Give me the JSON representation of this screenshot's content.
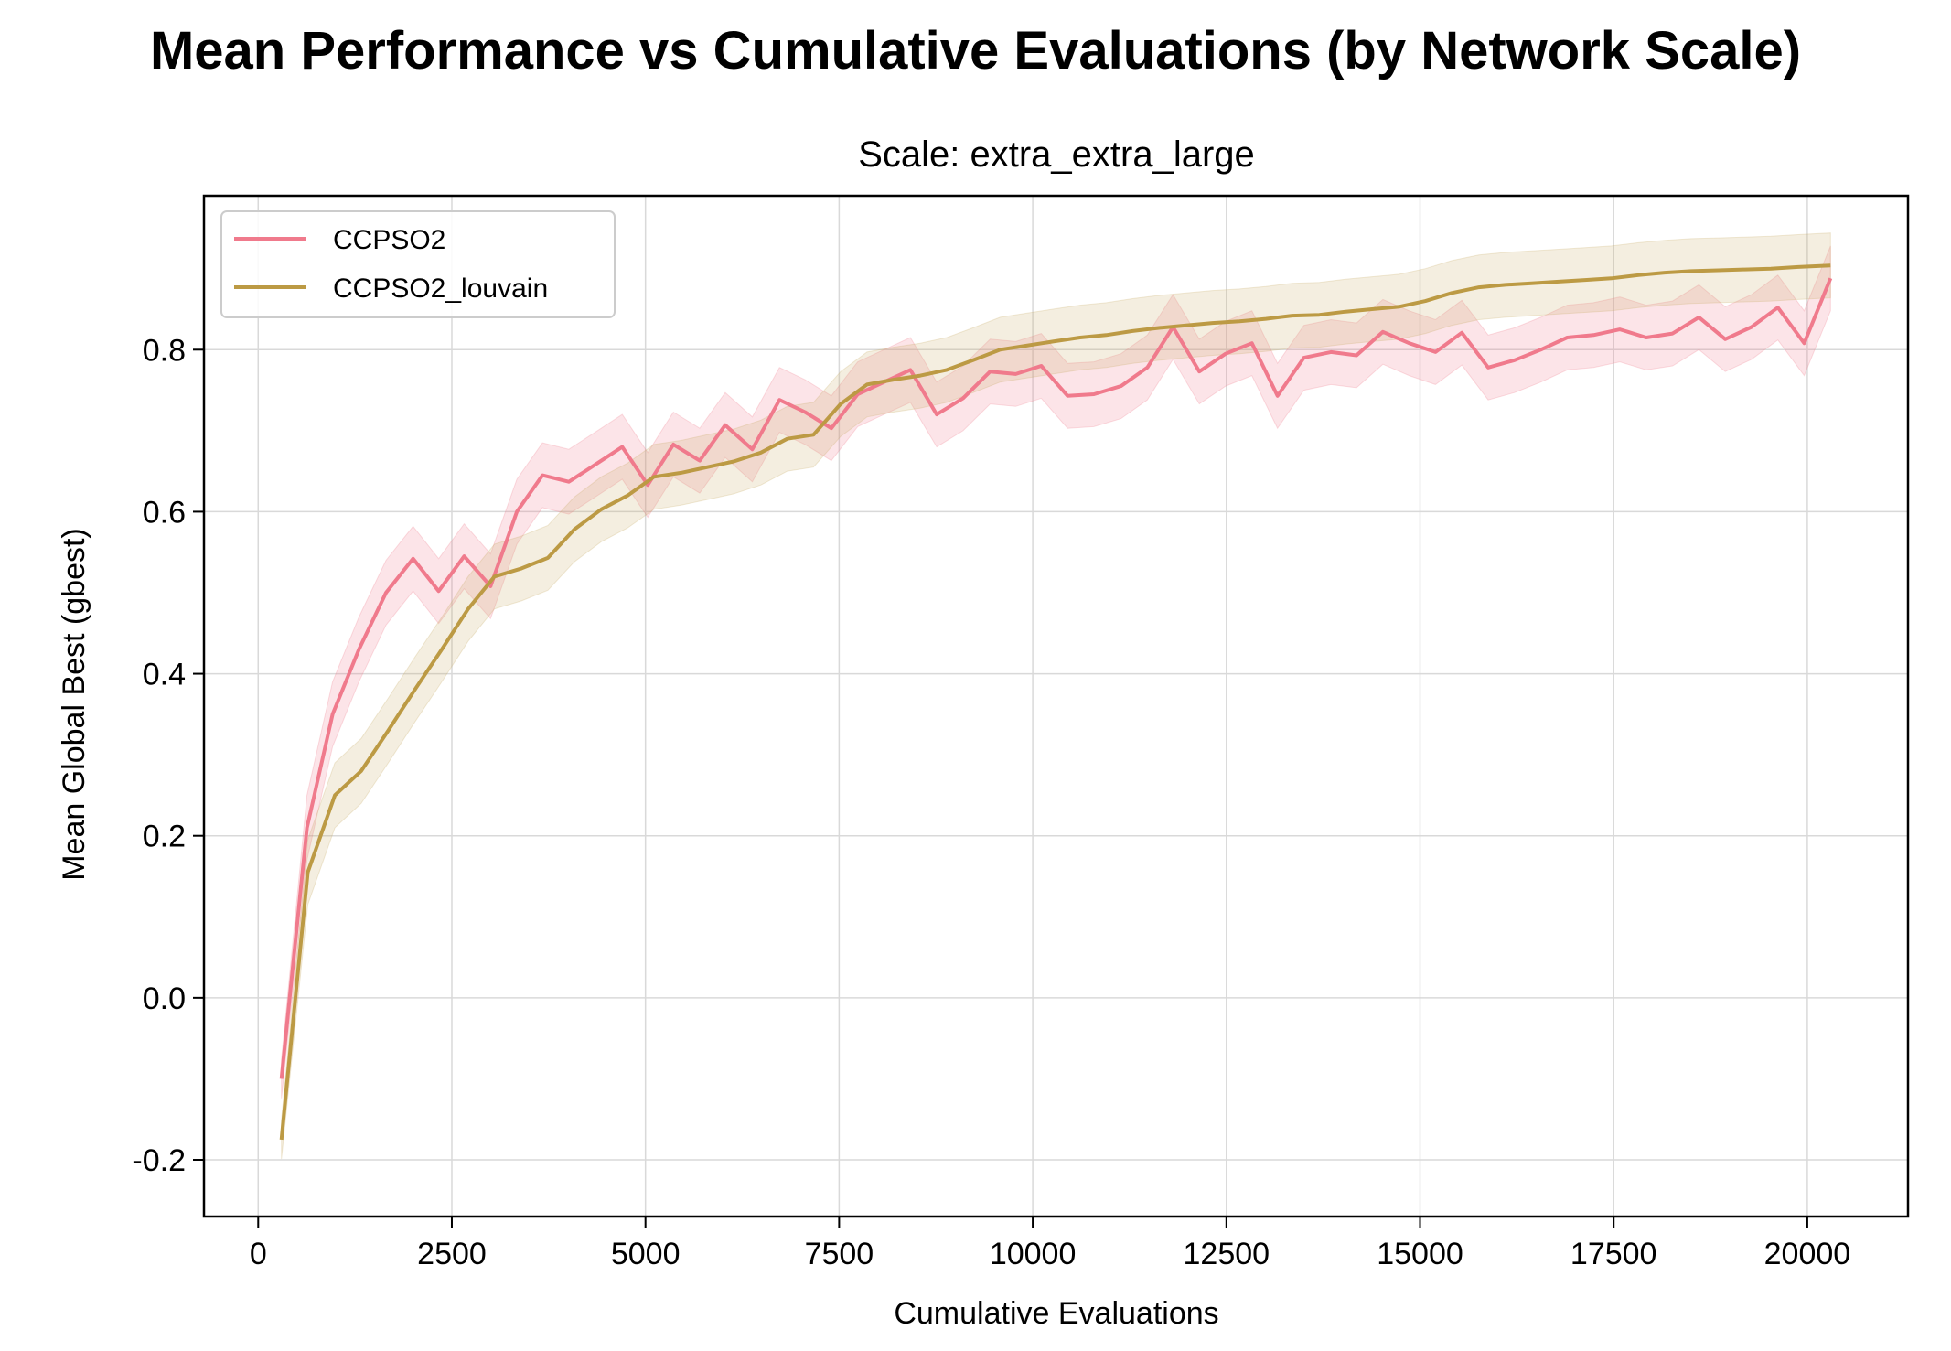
{
  "figure": {
    "suptitle": "Mean Performance vs Cumulative Evaluations (by Network Scale)"
  },
  "chart_data": {
    "type": "line",
    "title": "Scale: extra_extra_large",
    "xlabel": "Cumulative Evaluations",
    "ylabel": "Mean Global Best (gbest)",
    "xlim": [
      -700,
      21300
    ],
    "ylim": [
      -0.27,
      0.99
    ],
    "xticks": [
      0,
      2500,
      5000,
      7500,
      10000,
      12500,
      15000,
      17500,
      20000
    ],
    "xtick_labels": [
      "0",
      "2500",
      "5000",
      "7500",
      "10000",
      "12500",
      "15000",
      "17500",
      "20000"
    ],
    "yticks": [
      -0.2,
      0.0,
      0.2,
      0.4,
      0.6,
      0.8
    ],
    "ytick_labels": [
      "-0.2",
      "0.0",
      "0.2",
      "0.4",
      "0.6",
      "0.8"
    ],
    "grid": true,
    "legend_position": "top-left",
    "series": [
      {
        "name": "CCPSO2",
        "color": "#f07a8c",
        "band_color": "#f07a8c",
        "x": [
          300,
          630,
          960,
          1300,
          1650,
          2000,
          2330,
          2660,
          3000,
          3340,
          3670,
          4010,
          4350,
          4700,
          5030,
          5360,
          5700,
          6030,
          6380,
          6730,
          7060,
          7400,
          7740,
          8080,
          8420,
          8760,
          9100,
          9450,
          9780,
          10110,
          10450,
          10790,
          11140,
          11480,
          11810,
          12150,
          12490,
          12830,
          13160,
          13500,
          13850,
          14180,
          14520,
          14860,
          15200,
          15540,
          15880,
          16220,
          16560,
          16900,
          17240,
          17580,
          17920,
          18260,
          18600,
          18940,
          19280,
          19620,
          19960,
          20300
        ],
        "values": [
          -0.1,
          0.21,
          0.35,
          0.43,
          0.5,
          0.542,
          0.502,
          0.545,
          0.508,
          0.6,
          0.645,
          0.637,
          0.658,
          0.68,
          0.633,
          0.683,
          0.663,
          0.707,
          0.677,
          0.738,
          0.723,
          0.703,
          0.745,
          0.76,
          0.775,
          0.72,
          0.74,
          0.773,
          0.77,
          0.78,
          0.743,
          0.745,
          0.755,
          0.778,
          0.828,
          0.773,
          0.795,
          0.808,
          0.743,
          0.79,
          0.797,
          0.793,
          0.822,
          0.808,
          0.797,
          0.821,
          0.778,
          0.787,
          0.8,
          0.815,
          0.818,
          0.825,
          0.815,
          0.82,
          0.84,
          0.813,
          0.828,
          0.852,
          0.808,
          0.888
        ],
        "band_width": 0.04
      },
      {
        "name": "CCPSO2_louvain",
        "color": "#bc9a44",
        "band_color": "#c9aa62",
        "x": [
          300,
          640,
          990,
          1330,
          1680,
          2020,
          2370,
          2710,
          3050,
          3400,
          3740,
          4080,
          4430,
          4770,
          5110,
          5460,
          5800,
          6140,
          6490,
          6830,
          7170,
          7520,
          7860,
          8200,
          8550,
          8890,
          9230,
          9580,
          9920,
          10260,
          10610,
          10950,
          11290,
          11640,
          11980,
          12320,
          12670,
          13010,
          13350,
          13700,
          14040,
          14380,
          14730,
          15070,
          15410,
          15760,
          16100,
          16440,
          16790,
          17130,
          17470,
          17820,
          18160,
          18500,
          18850,
          19190,
          19530,
          19880,
          20300
        ],
        "values": [
          -0.175,
          0.155,
          0.25,
          0.28,
          0.33,
          0.38,
          0.43,
          0.48,
          0.52,
          0.53,
          0.543,
          0.578,
          0.603,
          0.62,
          0.643,
          0.648,
          0.655,
          0.662,
          0.673,
          0.69,
          0.695,
          0.733,
          0.757,
          0.763,
          0.768,
          0.775,
          0.787,
          0.8,
          0.805,
          0.81,
          0.815,
          0.818,
          0.823,
          0.827,
          0.83,
          0.833,
          0.835,
          0.838,
          0.842,
          0.843,
          0.847,
          0.85,
          0.853,
          0.86,
          0.87,
          0.877,
          0.88,
          0.882,
          0.884,
          0.886,
          0.888,
          0.892,
          0.895,
          0.897,
          0.898,
          0.899,
          0.9,
          0.902,
          0.904
        ],
        "band_width": 0.04
      }
    ]
  }
}
